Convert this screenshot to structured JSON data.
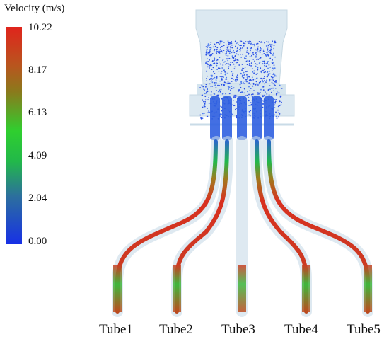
{
  "legend": {
    "title": "Velocity (m/s)",
    "ticks": [
      "10.22",
      "8.17",
      "6.13",
      "4.09",
      "2.04",
      "0.00"
    ],
    "colors": [
      "#e0241c",
      "#8a7a1c",
      "#2fcf2f",
      "#22b84a",
      "#2c6f9e",
      "#1730e6"
    ]
  },
  "tubes": [
    "Tube1",
    "Tube2",
    "Tube3",
    "Tube4",
    "Tube5"
  ]
}
